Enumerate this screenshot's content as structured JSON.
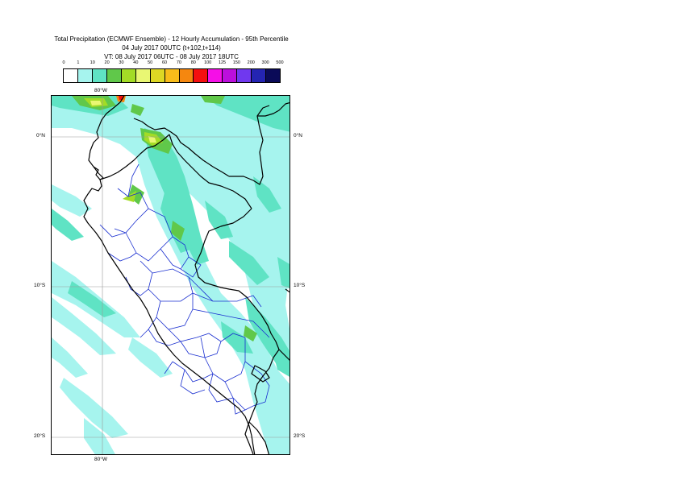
{
  "title": {
    "line1": "Total Precipitation (ECMWF Ensemble) - 12 Hourly Accumulation - 95th Percentile",
    "line2": "04 July 2017 00UTC (t+102,t+114)",
    "line3": "VT: 08 July 2017 06UTC - 08 July 2017 18UTC"
  },
  "legend": {
    "labels": [
      "0",
      "1",
      "10",
      "20",
      "30",
      "40",
      "50",
      "60",
      "70",
      "80",
      "100",
      "125",
      "150",
      "200",
      "300",
      "500"
    ],
    "colors": [
      "#ffffff",
      "#a6f4ee",
      "#5fe3c4",
      "#60c84a",
      "#a3dc26",
      "#e9f773",
      "#ddd724",
      "#f8bc1a",
      "#f5870f",
      "#f50f0f",
      "#f50fe7",
      "#bc0fdc",
      "#7038ef",
      "#2424b2",
      "#0a0a58"
    ]
  },
  "axes": {
    "lon_top": "80°W",
    "lon_bottom": "80°W",
    "lat_left": [
      "0°N",
      "10°S",
      "20°S"
    ],
    "lat_right": [
      "0°N",
      "10°S",
      "20°S"
    ]
  }
}
